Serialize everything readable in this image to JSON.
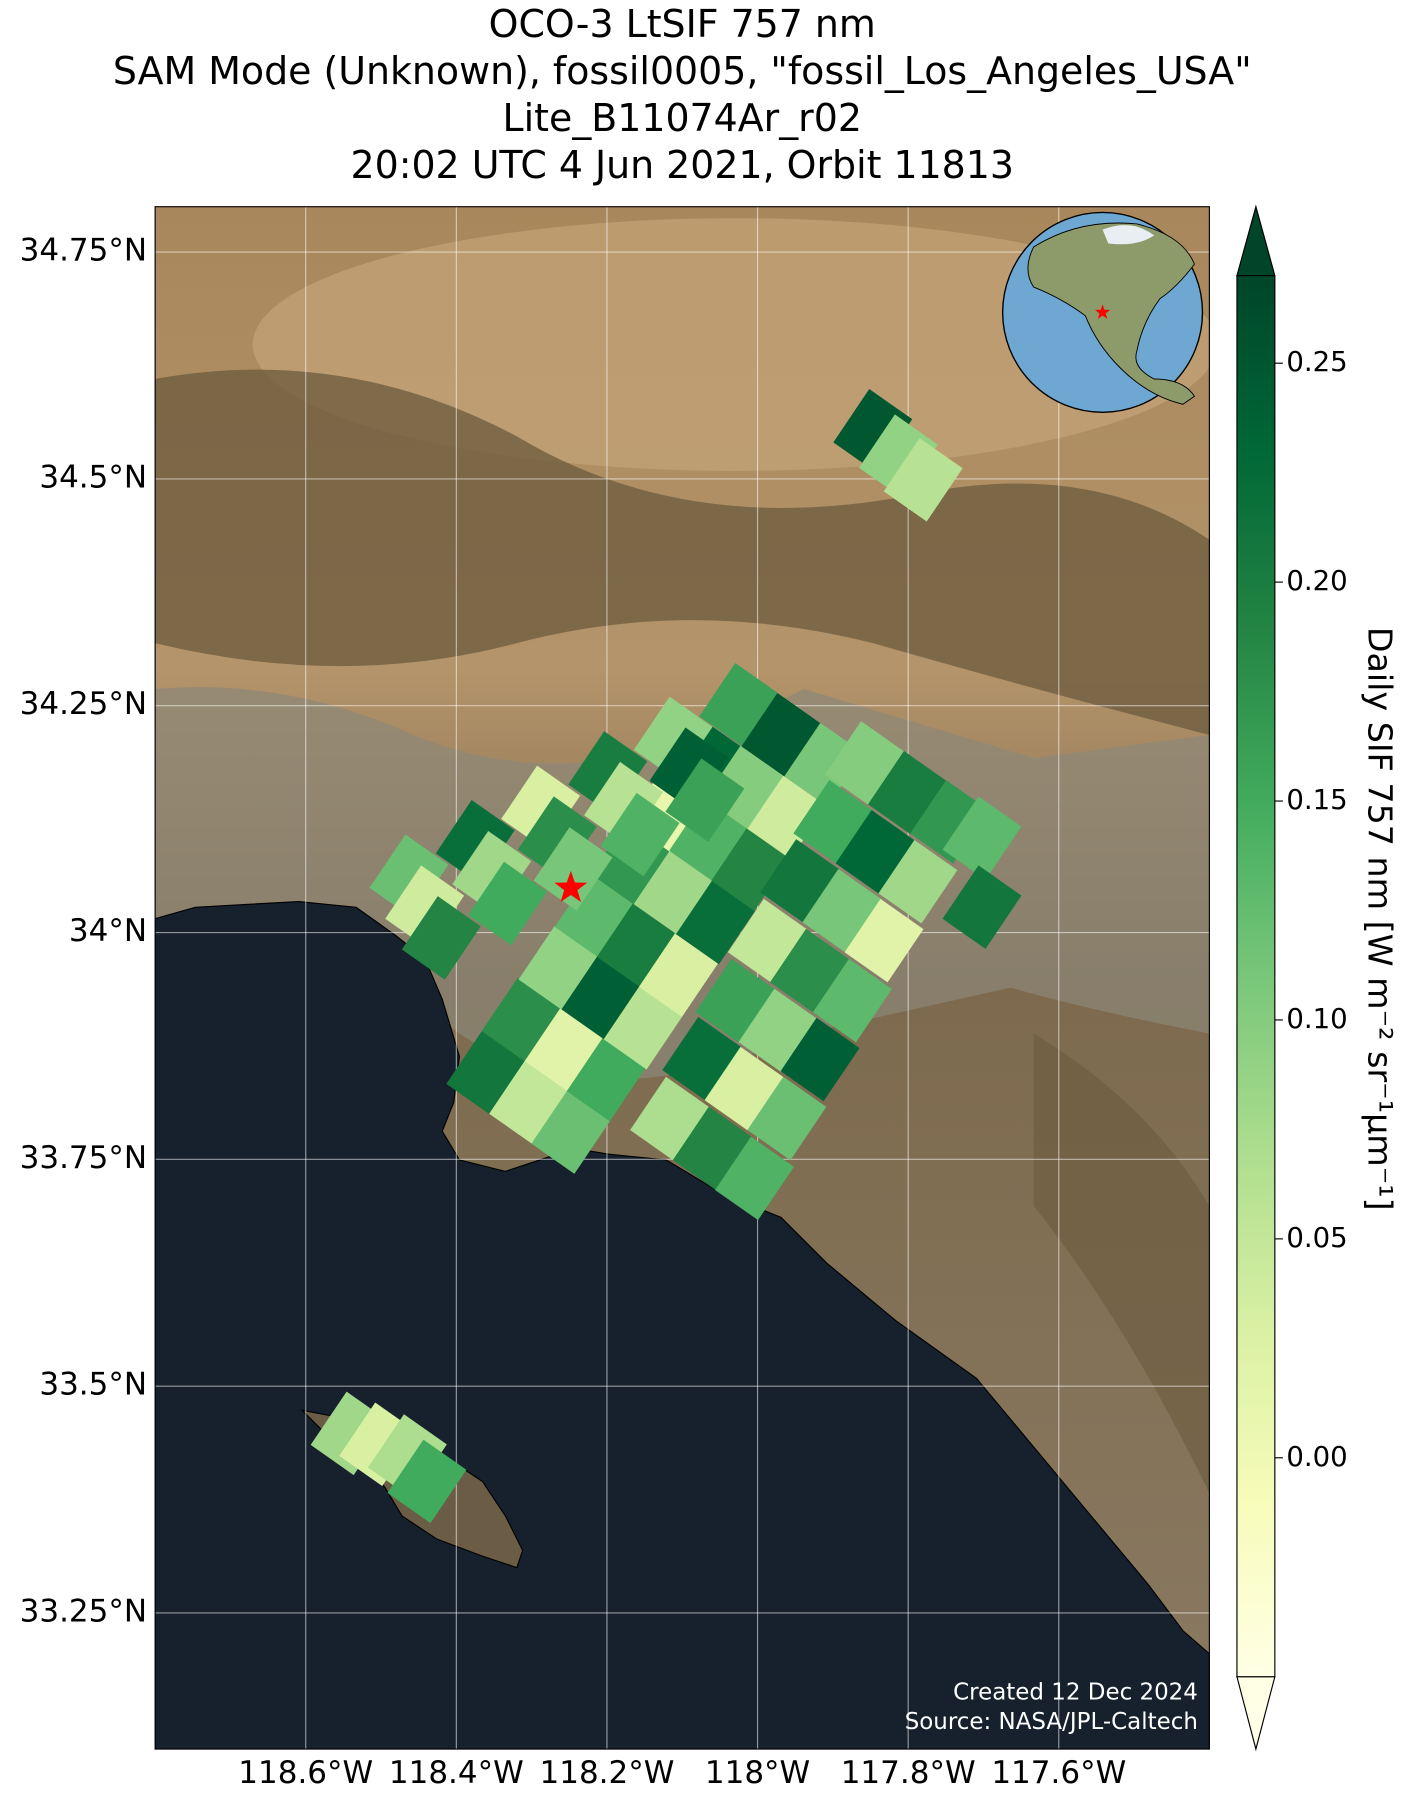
{
  "chart_data": {
    "type": "map",
    "title": [
      "OCO-3 LtSIF 757 nm",
      "SAM Mode (Unknown), fossil0005, \"fossil_Los_Angeles_USA\"",
      "Lite_B11074Ar_r02",
      "20:02 UTC 4 Jun 2021, Orbit 11813"
    ],
    "colorbar_label": "Daily SIF 757 nm [W m⁻² sr⁻¹μm⁻¹]",
    "credits": [
      "Created 12 Dec 2024",
      "Source: NASA/JPL-Caltech"
    ],
    "xlim": [
      -118.8,
      -117.4
    ],
    "ylim": [
      33.1,
      34.8
    ],
    "xticks": [
      {
        "value": -118.6,
        "label": "118.6°W"
      },
      {
        "value": -118.4,
        "label": "118.4°W"
      },
      {
        "value": -118.2,
        "label": "118.2°W"
      },
      {
        "value": -118.0,
        "label": "118°W"
      },
      {
        "value": -117.8,
        "label": "117.8°W"
      },
      {
        "value": -117.6,
        "label": "117.6°W"
      }
    ],
    "yticks": [
      {
        "value": 33.25,
        "label": "33.25°N"
      },
      {
        "value": 33.5,
        "label": "33.5°N"
      },
      {
        "value": 33.75,
        "label": "33.75°N"
      },
      {
        "value": 34.0,
        "label": "34°N"
      },
      {
        "value": 34.25,
        "label": "34.25°N"
      },
      {
        "value": 34.5,
        "label": "34.5°N"
      },
      {
        "value": 34.75,
        "label": "34.75°N"
      }
    ],
    "grid": true,
    "clim": [
      -0.05,
      0.27
    ],
    "cticks": [
      {
        "value": 0,
        "label": "0.00"
      },
      0.05,
      {
        "value": 0.1,
        "label": "0.10"
      },
      0.15,
      {
        "value": 0.2,
        "label": "0.20"
      },
      0.25
    ],
    "colormap": [
      "#ffffe5",
      "#f7fcb9",
      "#d9f0a3",
      "#addd8e",
      "#78c679",
      "#41ab5d",
      "#238443",
      "#006837",
      "#004529"
    ],
    "target": {
      "lon": -118.248,
      "lat": 34.049,
      "color": "#ff0000"
    },
    "lon": [
      -118.361,
      -118.304,
      -118.248,
      -118.314,
      -118.257,
      -118.201,
      -118.265,
      -118.208,
      -118.152,
      -118.217,
      -118.161,
      -118.105,
      -118.169,
      -118.112,
      -118.056,
      -118.121,
      -118.065,
      -118.009,
      -118.074,
      -118.018,
      -117.961,
      -118.025,
      -117.969,
      -117.912,
      -118.117,
      -118.06,
      -118.004,
      -118.074,
      -118.018,
      -117.961,
      -118.03,
      -117.973,
      -117.917,
      -117.987,
      -117.931,
      -117.874,
      -117.944,
      -117.888,
      -117.832,
      -117.9,
      -117.844,
      -117.787,
      -117.858,
      -117.801,
      -117.745,
      -118.463,
      -118.442,
      -118.42,
      -118.375,
      -118.353,
      -118.332,
      -118.288,
      -118.266,
      -118.245,
      -118.199,
      -118.178,
      -118.156,
      -118.112,
      -118.091,
      -118.07,
      -117.702,
      -117.702,
      -117.847,
      -117.813,
      -117.78,
      -118.541,
      -118.503,
      -118.465,
      -118.439
    ],
    "lat": [
      33.846,
      33.813,
      33.78,
      33.904,
      33.871,
      33.838,
      33.961,
      33.928,
      33.895,
      34.019,
      33.986,
      33.953,
      34.077,
      34.044,
      34.011,
      34.135,
      34.103,
      34.07,
      34.192,
      34.16,
      34.127,
      34.251,
      34.218,
      34.185,
      33.795,
      33.762,
      33.729,
      33.861,
      33.828,
      33.795,
      33.925,
      33.892,
      33.86,
      33.991,
      33.958,
      33.925,
      34.057,
      34.024,
      33.991,
      34.122,
      34.089,
      34.056,
      34.187,
      34.154,
      34.122,
      34.062,
      34.028,
      33.994,
      34.1,
      34.066,
      34.032,
      34.138,
      34.104,
      34.07,
      34.176,
      34.142,
      34.108,
      34.214,
      34.18,
      34.146,
      34.104,
      34.028,
      34.553,
      34.525,
      34.499,
      33.448,
      33.436,
      33.423,
      33.395
    ],
    "values": [
      0.21,
      0.05,
      0.12,
      0.18,
      0.02,
      0.15,
      0.09,
      0.24,
      0.06,
      0.13,
      0.2,
      0.03,
      0.17,
      0.08,
      0.22,
      0.01,
      0.14,
      0.19,
      0.23,
      0.1,
      0.04,
      0.16,
      0.25,
      0.11,
      0.07,
      0.19,
      0.14,
      0.22,
      0.03,
      0.12,
      0.16,
      0.09,
      0.24,
      0.05,
      0.18,
      0.13,
      0.21,
      0.11,
      0.02,
      0.15,
      0.23,
      0.08,
      0.1,
      0.2,
      0.17,
      0.12,
      0.04,
      0.19,
      0.22,
      0.08,
      0.15,
      0.03,
      0.18,
      0.11,
      0.2,
      0.06,
      0.14,
      0.09,
      0.24,
      0.16,
      0.13,
      0.21,
      0.25,
      0.09,
      0.06,
      0.08,
      0.03,
      0.07,
      0.15
    ]
  }
}
